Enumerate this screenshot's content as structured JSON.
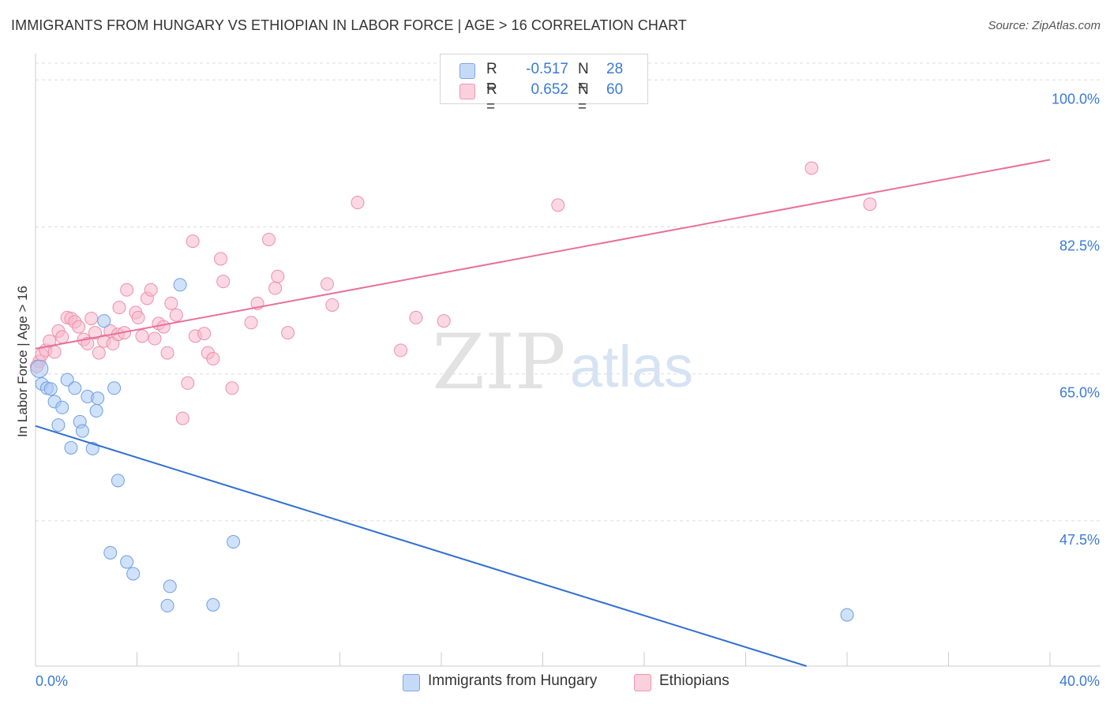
{
  "header": {
    "title": "IMMIGRANTS FROM HUNGARY VS ETHIOPIAN IN LABOR FORCE | AGE > 16 CORRELATION CHART",
    "source": "Source: ZipAtlas.com"
  },
  "watermark": {
    "zip": "ZIP",
    "atlas": "atlas"
  },
  "legend": {
    "rows": [
      {
        "r_label": "R =",
        "r_value": "-0.517",
        "n_label": "N =",
        "n_value": "28",
        "color": "#a9c8f5"
      },
      {
        "r_label": "R =",
        "r_value": "0.652",
        "n_label": "N =",
        "n_value": "60",
        "color": "#f7b8cc"
      }
    ]
  },
  "bottom_legend": {
    "items": [
      {
        "label": "Immigrants from Hungary",
        "color": "#a9c8f5"
      },
      {
        "label": "Ethiopians",
        "color": "#f7b8cc"
      }
    ]
  },
  "chart_data": {
    "type": "scatter",
    "title": "IMMIGRANTS FROM HUNGARY VS ETHIOPIAN IN LABOR FORCE | AGE > 16 CORRELATION CHART",
    "xlabel": "",
    "ylabel": "In Labor Force | Age > 16",
    "xlim": [
      0,
      40
    ],
    "ylim": [
      30.2,
      102
    ],
    "x_tick_labels": [
      "0.0%",
      "40.0%"
    ],
    "y_ticks": [
      47.5,
      65.0,
      82.5,
      100.0
    ],
    "y_tick_labels": [
      "47.5%",
      "65.0%",
      "82.5%",
      "100.0%"
    ],
    "grid": true,
    "legend_position": "top-center",
    "series": [
      {
        "name": "Immigrants from Hungary",
        "color": "#a9c8f5",
        "edge_color": "#6f9fe0",
        "line_color": "#2f6fd0",
        "trend": {
          "x": [
            0.0,
            30.4
          ],
          "y": [
            58.8,
            30.2
          ]
        },
        "points": [
          [
            0.15,
            65.6
          ],
          [
            0.25,
            63.8
          ],
          [
            0.45,
            63.3
          ],
          [
            0.6,
            63.2
          ],
          [
            0.75,
            61.7
          ],
          [
            0.9,
            58.9
          ],
          [
            1.05,
            61.0
          ],
          [
            1.25,
            64.3
          ],
          [
            1.4,
            56.2
          ],
          [
            1.55,
            63.3
          ],
          [
            1.75,
            59.3
          ],
          [
            1.85,
            58.2
          ],
          [
            2.05,
            62.3
          ],
          [
            2.25,
            56.1
          ],
          [
            2.4,
            60.6
          ],
          [
            2.45,
            62.1
          ],
          [
            2.7,
            71.3
          ],
          [
            3.1,
            63.3
          ],
          [
            3.25,
            52.3
          ],
          [
            2.95,
            43.7
          ],
          [
            3.6,
            42.6
          ],
          [
            3.85,
            41.2
          ],
          [
            5.3,
            39.7
          ],
          [
            5.2,
            37.4
          ],
          [
            5.7,
            75.6
          ],
          [
            7.0,
            37.5
          ],
          [
            7.8,
            45.0
          ],
          [
            32.0,
            36.3
          ]
        ]
      },
      {
        "name": "Ethiopians",
        "color": "#f7b8cc",
        "edge_color": "#ec8fab",
        "line_color": "#e8709a",
        "trend": {
          "x": [
            0.0,
            40.0
          ],
          "y": [
            68.0,
            90.5
          ]
        },
        "points": [
          [
            0.15,
            66.5
          ],
          [
            0.25,
            67.3
          ],
          [
            0.4,
            67.8
          ],
          [
            0.55,
            68.9
          ],
          [
            0.75,
            67.6
          ],
          [
            0.9,
            70.1
          ],
          [
            1.05,
            69.4
          ],
          [
            1.25,
            71.7
          ],
          [
            1.4,
            71.6
          ],
          [
            1.55,
            71.2
          ],
          [
            1.7,
            70.6
          ],
          [
            1.9,
            69.1
          ],
          [
            2.05,
            68.6
          ],
          [
            2.2,
            71.6
          ],
          [
            2.35,
            69.9
          ],
          [
            2.5,
            67.5
          ],
          [
            2.7,
            68.9
          ],
          [
            2.95,
            70.1
          ],
          [
            3.05,
            68.6
          ],
          [
            3.25,
            69.7
          ],
          [
            3.3,
            72.9
          ],
          [
            3.5,
            69.9
          ],
          [
            3.6,
            75.0
          ],
          [
            3.95,
            72.3
          ],
          [
            4.05,
            71.7
          ],
          [
            4.2,
            69.5
          ],
          [
            4.4,
            74.0
          ],
          [
            4.55,
            75.0
          ],
          [
            4.7,
            69.2
          ],
          [
            4.85,
            71.0
          ],
          [
            5.05,
            70.6
          ],
          [
            5.2,
            67.5
          ],
          [
            5.35,
            73.4
          ],
          [
            5.55,
            72.0
          ],
          [
            5.8,
            59.7
          ],
          [
            6.0,
            63.9
          ],
          [
            6.2,
            80.8
          ],
          [
            6.3,
            69.5
          ],
          [
            6.65,
            69.8
          ],
          [
            6.8,
            67.5
          ],
          [
            7.0,
            66.8
          ],
          [
            7.3,
            78.7
          ],
          [
            7.4,
            76.0
          ],
          [
            7.75,
            63.3
          ],
          [
            8.5,
            71.1
          ],
          [
            8.75,
            73.4
          ],
          [
            9.2,
            81.0
          ],
          [
            9.45,
            75.2
          ],
          [
            9.55,
            76.6
          ],
          [
            9.95,
            69.9
          ],
          [
            11.5,
            75.7
          ],
          [
            11.7,
            73.2
          ],
          [
            12.7,
            85.4
          ],
          [
            14.4,
            67.8
          ],
          [
            15.0,
            71.7
          ],
          [
            16.1,
            71.3
          ],
          [
            20.6,
            85.1
          ],
          [
            30.6,
            89.5
          ],
          [
            32.9,
            85.2
          ],
          [
            0.05,
            65.9
          ]
        ]
      }
    ]
  }
}
